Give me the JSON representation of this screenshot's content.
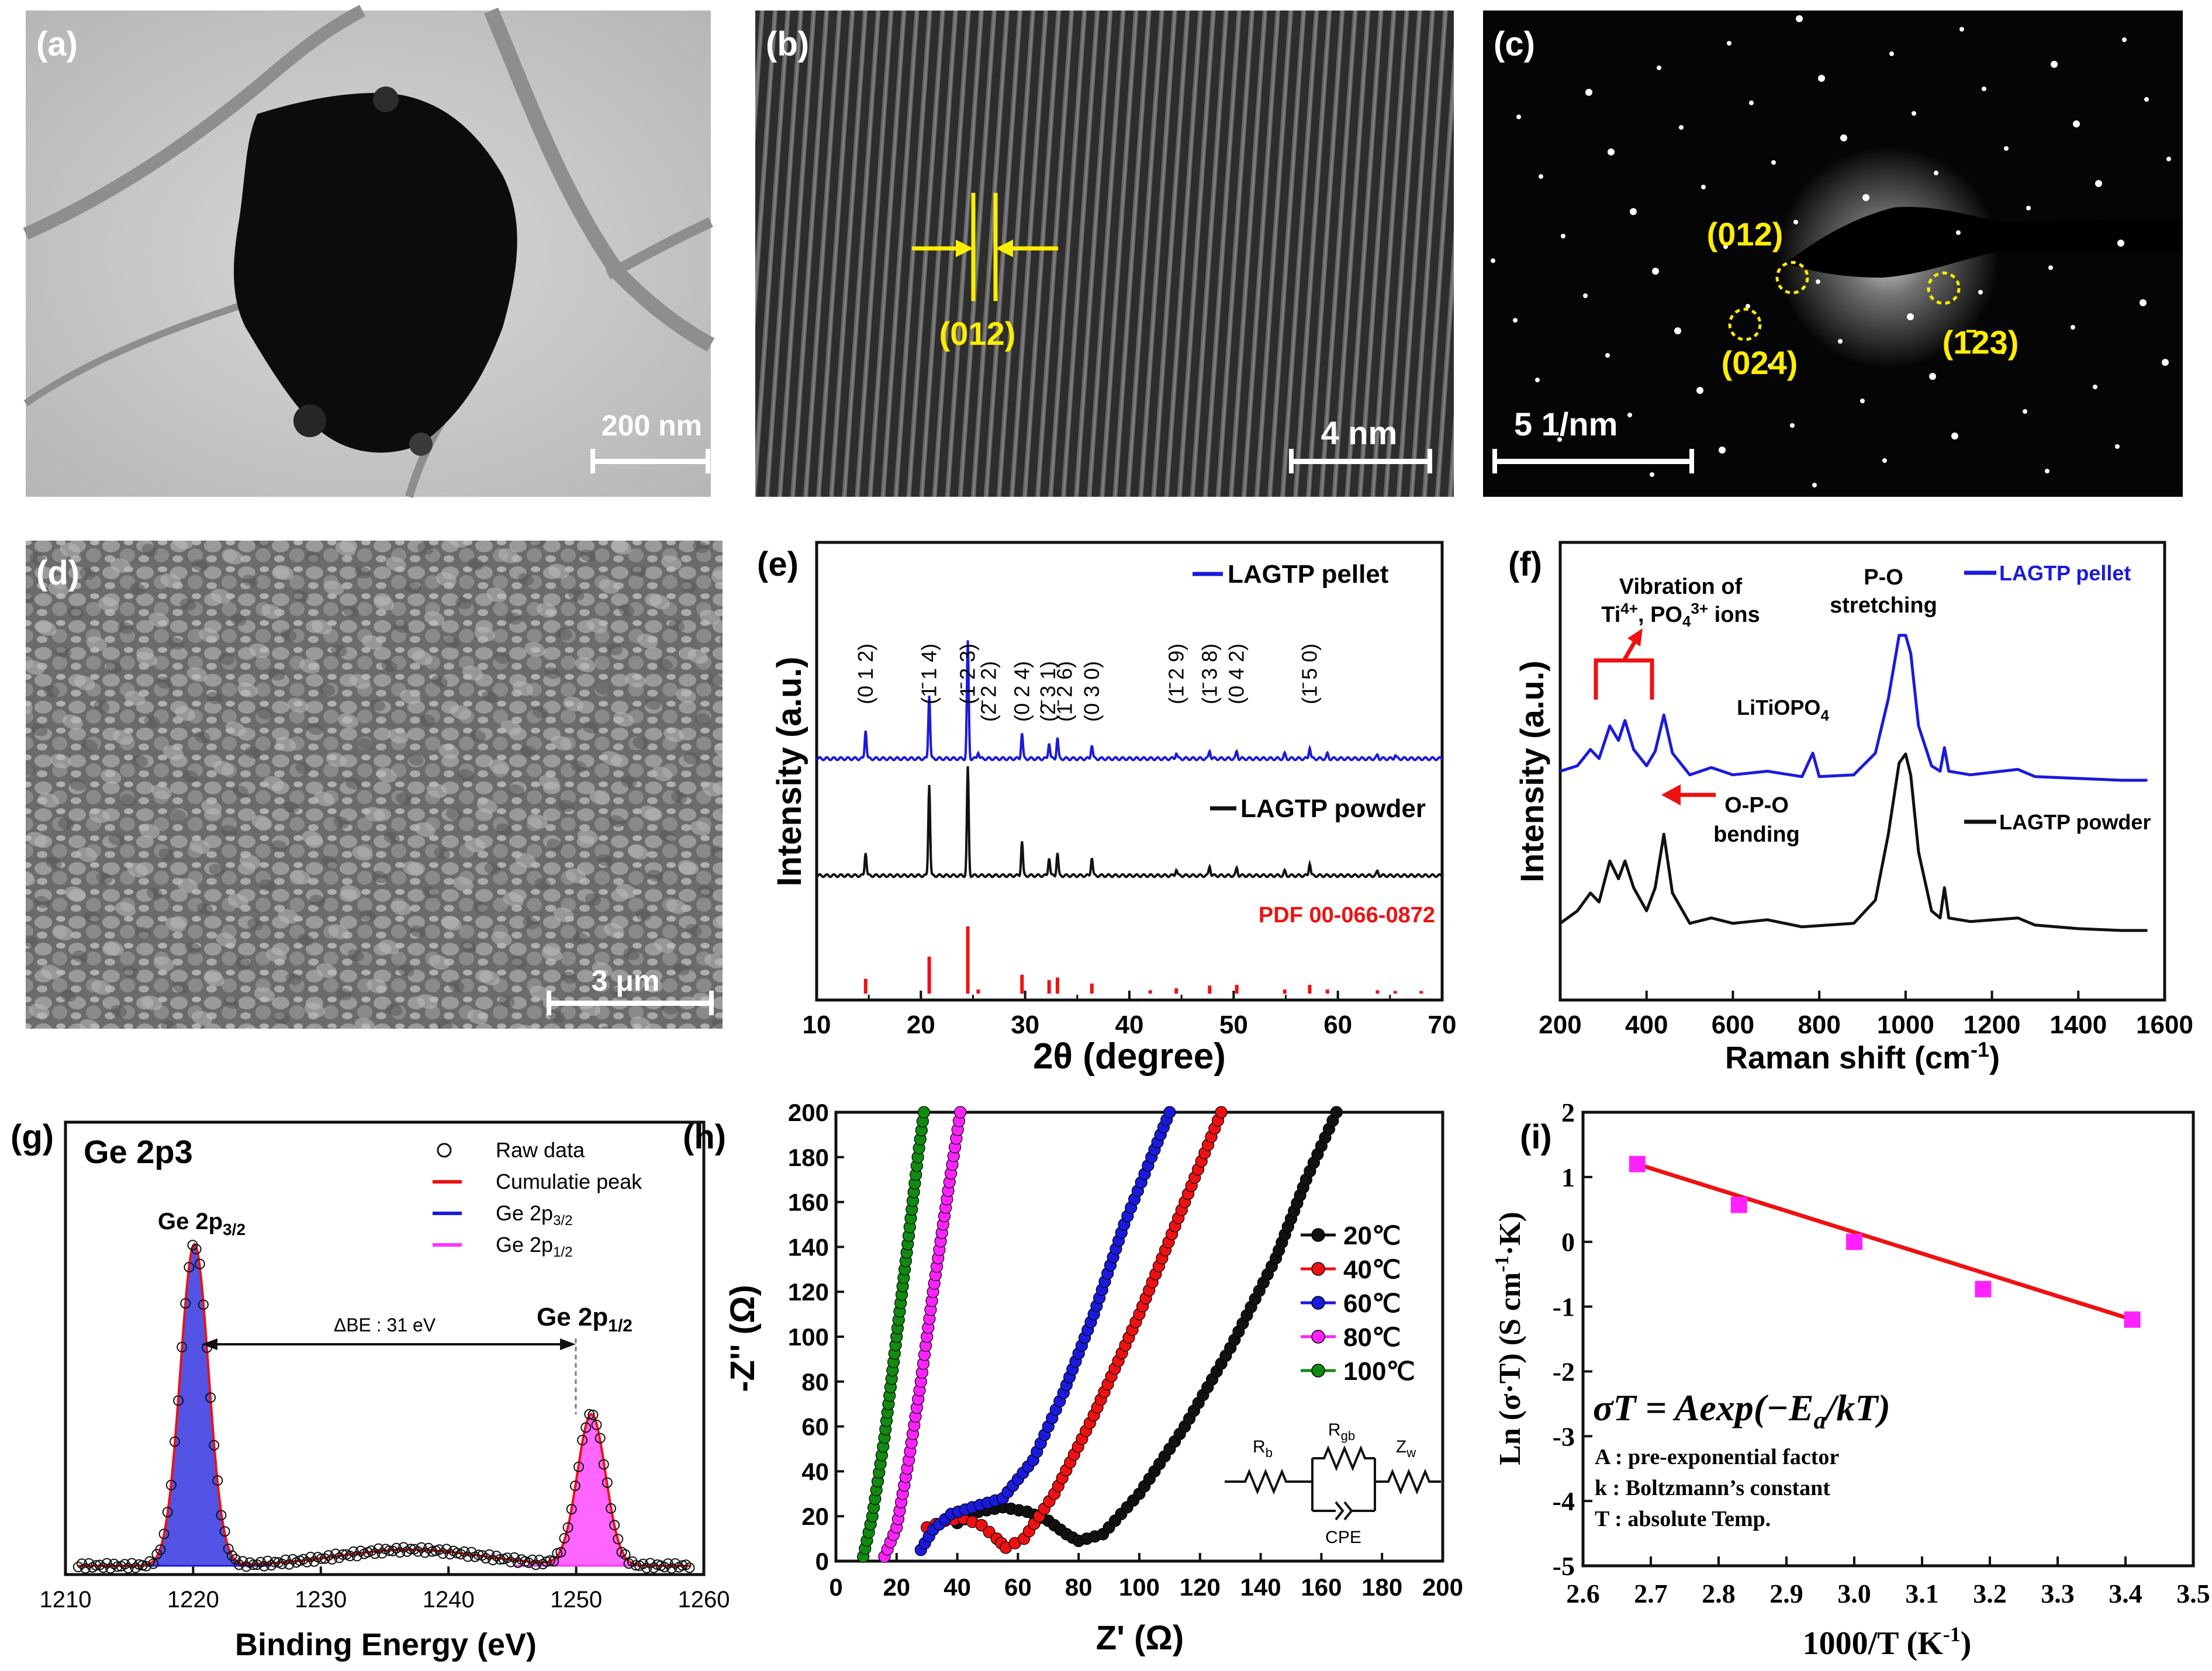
{
  "figure": {
    "panel_labels": [
      "(a)",
      "(b)",
      "(c)",
      "(d)",
      "(e)",
      "(f)",
      "(g)",
      "(h)",
      "(i)"
    ],
    "scalebars": {
      "a": "200 nm",
      "b": "4 nm",
      "c": "5 1/nm",
      "d": "3 μm"
    },
    "annotations": {
      "b_plane": "(012)",
      "c_spots": [
        "(012)",
        "(024)",
        "(1̄23)"
      ]
    }
  },
  "colors": {
    "blue": "#1a1adc",
    "red": "#ee1111",
    "black": "#111111",
    "magenta": "#ff33ff",
    "green": "#108a10",
    "yellow": "#ffee00"
  },
  "chart_data": [
    {
      "id": "e",
      "type": "line",
      "title": "",
      "xlabel": "2θ (degree)",
      "ylabel": "Intensity (a.u.)",
      "xlim": [
        10,
        70
      ],
      "xticks": [
        "10",
        "20",
        "30",
        "40",
        "50",
        "60",
        "70"
      ],
      "series": [
        {
          "name": "LAGTP pellet",
          "color": "#1a1adc",
          "peaks": [
            [
              14.7,
              0.25
            ],
            [
              20.8,
              0.55
            ],
            [
              24.5,
              1.0
            ],
            [
              25.5,
              0.06
            ],
            [
              29.7,
              0.22
            ],
            [
              32.3,
              0.14
            ],
            [
              33.1,
              0.18
            ],
            [
              36.4,
              0.12
            ],
            [
              44.5,
              0.05
            ],
            [
              47.7,
              0.07
            ],
            [
              50.3,
              0.06
            ],
            [
              54.9,
              0.04
            ],
            [
              57.3,
              0.1
            ],
            [
              59.0,
              0.04
            ],
            [
              63.8,
              0.03
            ],
            [
              65.5,
              0.03
            ]
          ]
        },
        {
          "name": "LAGTP powder",
          "color": "#111111",
          "peaks": [
            [
              14.7,
              0.22
            ],
            [
              20.8,
              0.85
            ],
            [
              24.5,
              1.0
            ],
            [
              29.7,
              0.32
            ],
            [
              32.3,
              0.17
            ],
            [
              33.1,
              0.21
            ],
            [
              36.4,
              0.17
            ],
            [
              44.5,
              0.06
            ],
            [
              47.7,
              0.09
            ],
            [
              50.3,
              0.07
            ],
            [
              54.9,
              0.04
            ],
            [
              57.3,
              0.12
            ],
            [
              63.8,
              0.04
            ]
          ]
        },
        {
          "name": "PDF 00-066-0872",
          "color": "#ee1111",
          "peaks": [
            [
              14.7,
              0.22
            ],
            [
              20.8,
              0.55
            ],
            [
              24.5,
              1.0
            ],
            [
              25.5,
              0.06
            ],
            [
              29.7,
              0.28
            ],
            [
              32.3,
              0.2
            ],
            [
              33.1,
              0.24
            ],
            [
              36.4,
              0.15
            ],
            [
              42.0,
              0.05
            ],
            [
              44.5,
              0.08
            ],
            [
              47.7,
              0.12
            ],
            [
              50.3,
              0.13
            ],
            [
              54.9,
              0.06
            ],
            [
              57.3,
              0.13
            ],
            [
              59.0,
              0.06
            ],
            [
              63.8,
              0.05
            ],
            [
              65.5,
              0.04
            ],
            [
              68.0,
              0.04
            ]
          ]
        }
      ],
      "peak_labels": [
        {
          "x": 14.7,
          "label": "(0 1 2)"
        },
        {
          "x": 20.8,
          "label": "(1̄ 1 4)"
        },
        {
          "x": 24.5,
          "label": "(1̄ 2 3)"
        },
        {
          "x": 26.5,
          "label": "(2̄ 2 2)"
        },
        {
          "x": 29.7,
          "label": "(0 2 4)"
        },
        {
          "x": 32.2,
          "label": "(2̄ 3 1)"
        },
        {
          "x": 33.8,
          "label": "(1̄ 2 6)"
        },
        {
          "x": 36.4,
          "label": "(0 3 0)"
        },
        {
          "x": 44.5,
          "label": "(1̄ 2 9)"
        },
        {
          "x": 47.7,
          "label": "(1̄ 3 8)"
        },
        {
          "x": 50.3,
          "label": "(0 4 2)"
        },
        {
          "x": 57.3,
          "label": "(1̄ 5 0)"
        }
      ]
    },
    {
      "id": "f",
      "type": "line",
      "title": "",
      "xlabel": "Raman shift (cm",
      "xlabel_sup": "-1",
      "xlabel_end": ")",
      "ylabel": "Intensity (a.u.)",
      "xlim": [
        200,
        1600
      ],
      "xticks": [
        "200",
        "400",
        "600",
        "800",
        "1000",
        "1200",
        "1400",
        "1600"
      ],
      "series": [
        {
          "name": "LAGTP pellet",
          "color": "#1a1adc",
          "points": [
            [
              200,
              0.05
            ],
            [
              240,
              0.08
            ],
            [
              270,
              0.17
            ],
            [
              290,
              0.12
            ],
            [
              315,
              0.3
            ],
            [
              335,
              0.22
            ],
            [
              350,
              0.33
            ],
            [
              370,
              0.17
            ],
            [
              400,
              0.08
            ],
            [
              420,
              0.16
            ],
            [
              440,
              0.36
            ],
            [
              460,
              0.15
            ],
            [
              500,
              0.03
            ],
            [
              550,
              0.07
            ],
            [
              600,
              0.03
            ],
            [
              680,
              0.05
            ],
            [
              760,
              0.02
            ],
            [
              785,
              0.15
            ],
            [
              800,
              0.02
            ],
            [
              880,
              0.03
            ],
            [
              930,
              0.15
            ],
            [
              960,
              0.45
            ],
            [
              985,
              0.8
            ],
            [
              1000,
              0.8
            ],
            [
              1012,
              0.7
            ],
            [
              1030,
              0.3
            ],
            [
              1060,
              0.08
            ],
            [
              1080,
              0.05
            ],
            [
              1090,
              0.18
            ],
            [
              1100,
              0.05
            ],
            [
              1150,
              0.03
            ],
            [
              1260,
              0.06
            ],
            [
              1300,
              0.02
            ],
            [
              1400,
              0.01
            ],
            [
              1500,
              0.0
            ],
            [
              1560,
              0.0
            ]
          ]
        },
        {
          "name": "LAGTP powder",
          "color": "#111111",
          "points": [
            [
              200,
              0.05
            ],
            [
              240,
              0.12
            ],
            [
              270,
              0.22
            ],
            [
              290,
              0.17
            ],
            [
              315,
              0.4
            ],
            [
              335,
              0.3
            ],
            [
              350,
              0.4
            ],
            [
              370,
              0.25
            ],
            [
              400,
              0.12
            ],
            [
              420,
              0.25
            ],
            [
              440,
              0.55
            ],
            [
              460,
              0.22
            ],
            [
              500,
              0.05
            ],
            [
              550,
              0.08
            ],
            [
              600,
              0.05
            ],
            [
              680,
              0.07
            ],
            [
              760,
              0.03
            ],
            [
              880,
              0.05
            ],
            [
              930,
              0.18
            ],
            [
              960,
              0.55
            ],
            [
              985,
              0.95
            ],
            [
              1000,
              1.0
            ],
            [
              1012,
              0.88
            ],
            [
              1030,
              0.45
            ],
            [
              1060,
              0.12
            ],
            [
              1080,
              0.08
            ],
            [
              1090,
              0.25
            ],
            [
              1100,
              0.08
            ],
            [
              1150,
              0.06
            ],
            [
              1260,
              0.08
            ],
            [
              1300,
              0.04
            ],
            [
              1400,
              0.02
            ],
            [
              1500,
              0.01
            ],
            [
              1560,
              0.01
            ]
          ]
        }
      ],
      "annotations": {
        "vib_line1": "Vibration of",
        "vib_ti": "Ti",
        "vib_ti_sup": "4+",
        "vib_po": ", PO",
        "vib_po_sub": "4",
        "vib_po_sup": "3+",
        "vib_end": " ions",
        "po_line1": "P-O",
        "po_line2": "stretching",
        "litiopo": "LiTiOPO",
        "litiopo_sub": "4",
        "opo_line1": "O-P-O",
        "opo_line2": "bending"
      }
    },
    {
      "id": "g",
      "type": "line",
      "title": "Ge 2p3",
      "xlabel": "Binding Energy (eV)",
      "ylabel": "",
      "xlim": [
        1210,
        1260
      ],
      "xticks": [
        "1210",
        "1220",
        "1230",
        "1240",
        "1250",
        "1260"
      ],
      "legend": [
        "Raw data",
        "Cumulatie peak",
        "Ge 2p",
        "Ge 2p"
      ],
      "legend_subs": [
        "3/2",
        "1/2"
      ],
      "peaks": [
        {
          "center": 1220.1,
          "height": 1.0,
          "fwhm": 2.6,
          "color": "#1a1adc"
        },
        {
          "center": 1251.2,
          "height": 0.47,
          "fwhm": 2.6,
          "color": "#ff33ff"
        }
      ],
      "baseline": 0.02,
      "annotations": {
        "ge32": "Ge 2p",
        "ge32_sub": "3/2",
        "ge12": "Ge 2p",
        "ge12_sub": "1/2",
        "dbe": "ΔBE : 31 eV"
      }
    },
    {
      "id": "h",
      "type": "scatter",
      "title": "",
      "xlabel": "Z' (Ω)",
      "ylabel": "-Z'' (Ω)",
      "xlim": [
        0,
        200
      ],
      "ylim": [
        0,
        200
      ],
      "xticks": [
        "0",
        "20",
        "40",
        "60",
        "80",
        "100",
        "120",
        "140",
        "160",
        "180",
        "200"
      ],
      "yticks": [
        "0",
        "20",
        "40",
        "60",
        "80",
        "100",
        "120",
        "140",
        "160",
        "180",
        "200"
      ],
      "series": [
        {
          "name": "20℃",
          "color": "#111111",
          "points": [
            [
              40,
              17
            ],
            [
              47,
              22
            ],
            [
              55,
              24
            ],
            [
              63,
              22
            ],
            [
              70,
              18
            ],
            [
              76,
              12
            ],
            [
              80,
              9
            ],
            [
              88,
              12
            ],
            [
              100,
              30
            ],
            [
              115,
              60
            ],
            [
              130,
              95
            ],
            [
              145,
              135
            ],
            [
              155,
              170
            ],
            [
              165,
              200
            ]
          ]
        },
        {
          "name": "40℃",
          "color": "#ee1111",
          "points": [
            [
              30,
              15
            ],
            [
              36,
              18
            ],
            [
              42,
              19
            ],
            [
              48,
              16
            ],
            [
              53,
              10
            ],
            [
              56,
              6
            ],
            [
              62,
              10
            ],
            [
              72,
              30
            ],
            [
              85,
              65
            ],
            [
              100,
              110
            ],
            [
              115,
              160
            ],
            [
              127,
              200
            ]
          ]
        },
        {
          "name": "60℃",
          "color": "#1a1adc",
          "points": [
            [
              28,
              5
            ],
            [
              32,
              14
            ],
            [
              38,
              21
            ],
            [
              45,
              24
            ],
            [
              55,
              28
            ],
            [
              65,
              45
            ],
            [
              75,
              75
            ],
            [
              85,
              110
            ],
            [
              95,
              150
            ],
            [
              104,
              180
            ],
            [
              110,
              200
            ]
          ]
        },
        {
          "name": "80℃",
          "color": "#ff22ff",
          "points": [
            [
              16,
              2
            ],
            [
              20,
              15
            ],
            [
              24,
              45
            ],
            [
              28,
              80
            ],
            [
              32,
              120
            ],
            [
              37,
              165
            ],
            [
              41,
              200
            ]
          ]
        },
        {
          "name": "100℃",
          "color": "#108a10",
          "points": [
            [
              9,
              2
            ],
            [
              12,
              20
            ],
            [
              16,
              55
            ],
            [
              20,
              100
            ],
            [
              24,
              145
            ],
            [
              27,
              180
            ],
            [
              29,
              200
            ]
          ]
        }
      ],
      "circuit": {
        "rb": "R",
        "rb_sub": "b",
        "rgb": "R",
        "rgb_sub": "gb",
        "zw": "Z",
        "zw_sub": "w",
        "cpe": "CPE"
      }
    },
    {
      "id": "i",
      "type": "scatter",
      "title": "",
      "xlabel": "1000/T (K",
      "xlabel_sup": "-1",
      "xlabel_end": ")",
      "ylabel": "Ln (σ·T) (S cm",
      "ylabel_sup": "-1",
      "ylabel_end": "·K)",
      "xlim": [
        2.6,
        3.5
      ],
      "ylim": [
        -5,
        2
      ],
      "xticks": [
        "2.6",
        "2.7",
        "2.8",
        "2.9",
        "3.0",
        "3.1",
        "3.2",
        "3.3",
        "3.4",
        "3.5"
      ],
      "yticks": [
        "2",
        "1",
        "0",
        "-1",
        "-2",
        "-3",
        "-4",
        "-5"
      ],
      "points": [
        [
          2.68,
          1.2
        ],
        [
          2.83,
          0.57
        ],
        [
          3.0,
          0.0
        ],
        [
          3.19,
          -0.73
        ],
        [
          3.41,
          -1.2
        ]
      ],
      "fit_line": [
        [
          2.68,
          1.2
        ],
        [
          3.41,
          -1.2
        ]
      ],
      "marker_color": "#ff22ff",
      "line_color": "#ee1111",
      "equation": {
        "p1": "σT = Aexp(−E",
        "p1_sub": "a",
        "p2": "/kT)"
      },
      "notes": [
        "A : pre-exponential factor",
        "k : Boltzmann’s constant",
        "T : absolute Temp."
      ]
    }
  ]
}
